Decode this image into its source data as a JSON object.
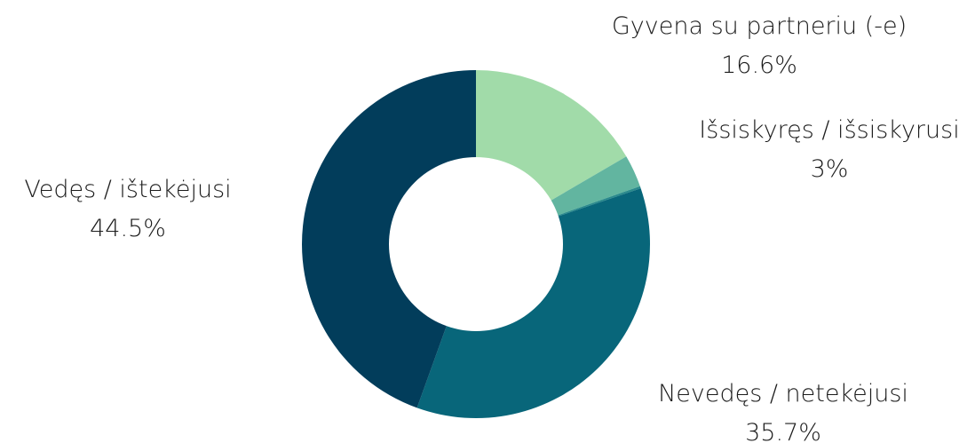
{
  "chart_data": {
    "type": "pie",
    "variant": "donut",
    "title": "",
    "start_angle_deg": 0,
    "direction": "clockwise",
    "slices": [
      {
        "label": "Gyvena su partneriu (-e)",
        "value": 16.6,
        "value_text": "16.6%",
        "color": "#a1dba9"
      },
      {
        "label": "Išsiskyręs / išsiskyrusi",
        "value": 3.0,
        "value_text": "3%",
        "color": "#62b5a0"
      },
      {
        "label": "",
        "value": 0.2,
        "value_text": "",
        "color": "#2a8a8c"
      },
      {
        "label": "Nevedęs / netekėjusi",
        "value": 35.7,
        "value_text": "35.7%",
        "color": "#08667a"
      },
      {
        "label": "Vedęs / ištekėjusi",
        "value": 44.5,
        "value_text": "44.5%",
        "color": "#023d5b"
      }
    ],
    "legend": "none"
  }
}
